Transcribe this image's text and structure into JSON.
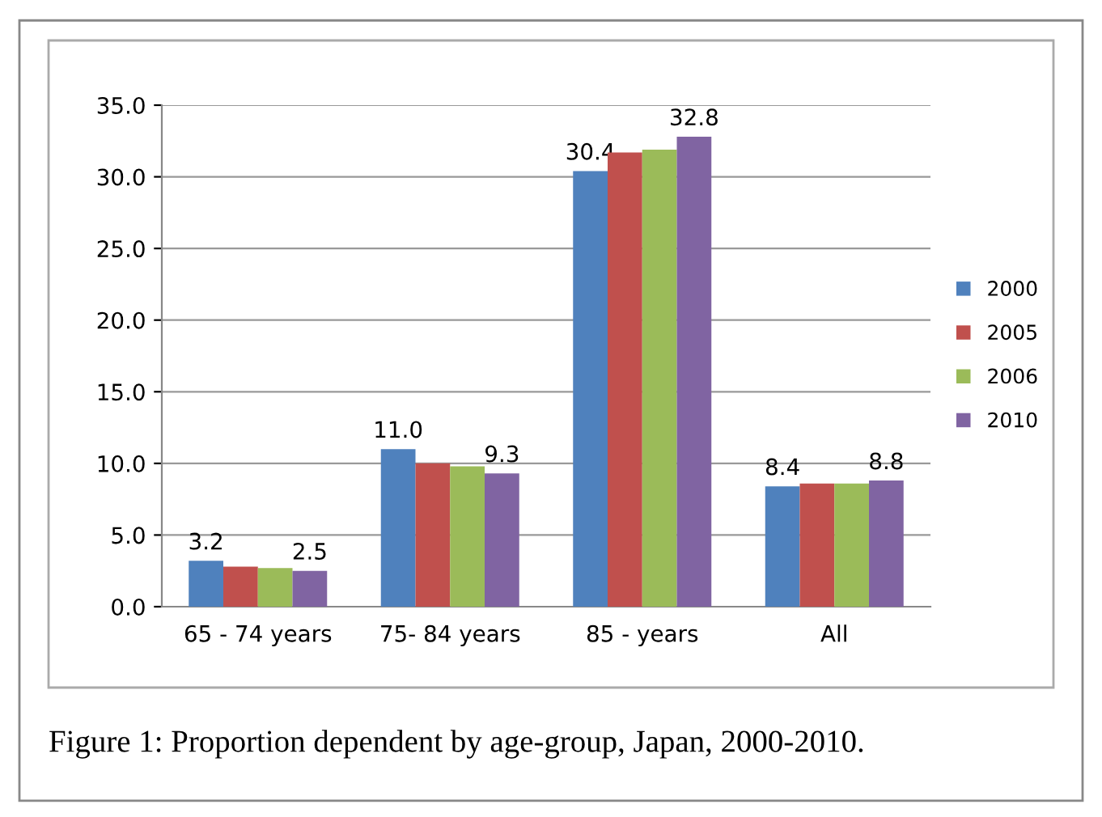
{
  "chart_data": {
    "type": "bar",
    "categories": [
      "65 - 74 years",
      "75- 84 years",
      "85 - years",
      "All"
    ],
    "series": [
      {
        "name": "2000",
        "color": "#4f81bd",
        "values": [
          3.2,
          11.0,
          30.4,
          8.4
        ],
        "value_labels": [
          "3.2",
          "11.0",
          "30.4",
          "8.4"
        ]
      },
      {
        "name": "2005",
        "color": "#c0504d",
        "values": [
          2.8,
          10.0,
          31.7,
          8.6
        ],
        "value_labels": [
          null,
          null,
          null,
          null
        ]
      },
      {
        "name": "2006",
        "color": "#9bbb59",
        "values": [
          2.7,
          9.8,
          31.9,
          8.6
        ],
        "value_labels": [
          null,
          null,
          null,
          null
        ]
      },
      {
        "name": "2010",
        "color": "#8064a2",
        "values": [
          2.5,
          9.3,
          32.8,
          8.8
        ],
        "value_labels": [
          "2.5",
          "9.3",
          "32.8",
          "8.8"
        ]
      }
    ],
    "ylim": [
      0,
      35
    ],
    "yticks": [
      {
        "value": 0,
        "label": "0.0"
      },
      {
        "value": 5,
        "label": "5.0"
      },
      {
        "value": 10,
        "label": "10.0"
      },
      {
        "value": 15,
        "label": "15.0"
      },
      {
        "value": 20,
        "label": "20.0"
      },
      {
        "value": 25,
        "label": "25.0"
      },
      {
        "value": 30,
        "label": "30.0"
      },
      {
        "value": 35,
        "label": "35.0"
      }
    ],
    "grid": "y",
    "legend": "right",
    "annotations": [
      "Figure 1: Proportion dependent by age-group, Japan, 2000-2010."
    ]
  }
}
